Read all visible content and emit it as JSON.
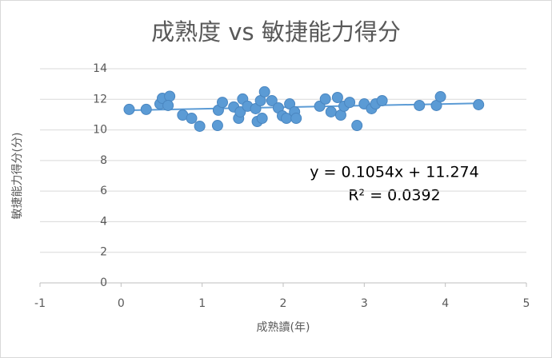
{
  "chart_data": {
    "type": "scatter",
    "title": "成熟度 vs 敏捷能力得分",
    "x_label": "成熟讀(年)",
    "y_label": "敏捷能力得分(分)",
    "series": [
      {
        "name": "敏捷能力得分",
        "color": "#5b9bd5",
        "x": [
          0.1,
          0.31,
          0.48,
          0.51,
          0.6,
          0.58,
          0.76,
          0.87,
          0.97,
          1.19,
          1.2,
          1.25,
          1.39,
          1.45,
          1.5,
          1.47,
          1.56,
          1.66,
          1.68,
          1.74,
          1.72,
          1.77,
          1.86,
          1.94,
          1.99,
          2.04,
          2.08,
          2.14,
          2.16,
          2.45,
          2.52,
          2.59,
          2.67,
          2.71,
          2.75,
          2.82,
          2.91,
          3.0,
          3.09,
          3.14,
          3.22,
          3.68,
          3.89,
          3.94,
          4.41
        ],
        "values": [
          11.34,
          11.34,
          11.7,
          12.07,
          12.2,
          11.6,
          10.97,
          10.76,
          10.24,
          10.29,
          11.29,
          11.8,
          11.5,
          10.76,
          12.02,
          11.18,
          11.55,
          11.39,
          10.55,
          10.76,
          11.91,
          12.49,
          11.91,
          11.44,
          10.92,
          10.76,
          11.7,
          11.18,
          10.76,
          11.55,
          12.02,
          11.18,
          12.12,
          10.97,
          11.55,
          11.8,
          10.29,
          11.7,
          11.39,
          11.7,
          11.91,
          11.6,
          11.6,
          12.17,
          11.65
        ]
      }
    ],
    "trendline": {
      "equation": "y = 0.1054x + 11.274",
      "r_squared": "R² = 0.0392",
      "slope": 0.1054,
      "intercept": 11.274
    },
    "xlim": [
      -1,
      5
    ],
    "xticks": [
      -1,
      0,
      1,
      2,
      3,
      4,
      5
    ],
    "ylim": [
      0,
      14
    ],
    "yticks": [
      0,
      2,
      4,
      6,
      8,
      10,
      12,
      14
    ],
    "grid": true
  }
}
